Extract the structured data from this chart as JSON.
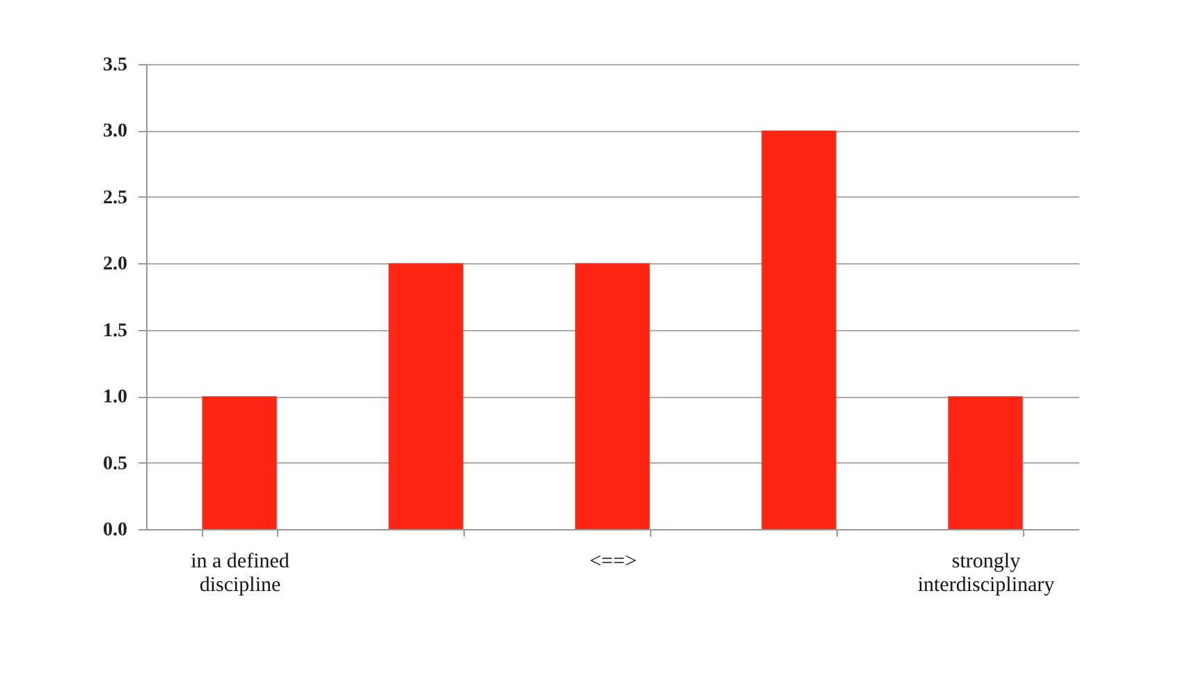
{
  "chart_data": {
    "type": "bar",
    "categories": [
      "in a defined discipline",
      null,
      "<==>",
      null,
      "strongly interdisciplinary"
    ],
    "values": [
      1,
      2,
      2,
      3,
      1
    ],
    "color": "#ff2616",
    "ylim": [
      0,
      3.5
    ],
    "yticks": [
      {
        "value": 0,
        "label": "0.0"
      },
      {
        "value": 0.5,
        "label": "0.5"
      },
      {
        "value": 1,
        "label": "1.0"
      },
      {
        "value": 1.5,
        "label": "1.5"
      },
      {
        "value": 2,
        "label": "2.0"
      },
      {
        "value": 2.5,
        "label": "2.5"
      },
      {
        "value": 3,
        "label": "3.0"
      },
      {
        "value": 3.5,
        "label": "3.5"
      }
    ],
    "grid": "y"
  }
}
